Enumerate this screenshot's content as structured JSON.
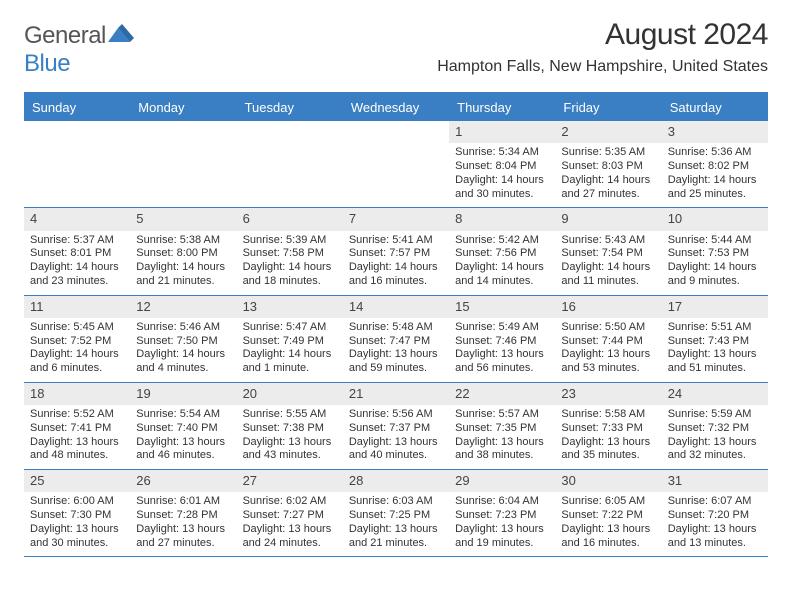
{
  "brand": {
    "word1": "General",
    "word2": "Blue"
  },
  "colors": {
    "brand_blue": "#3a7fc4",
    "header_bg": "#3a7fc4",
    "daynum_bg": "#ececec",
    "text": "#333333",
    "background": "#ffffff"
  },
  "typography": {
    "title_fontsize": 30,
    "location_fontsize": 16,
    "dow_fontsize": 13,
    "daynum_fontsize": 13,
    "body_fontsize": 11
  },
  "title": "August 2024",
  "location": "Hampton Falls, New Hampshire, United States",
  "dow": [
    "Sunday",
    "Monday",
    "Tuesday",
    "Wednesday",
    "Thursday",
    "Friday",
    "Saturday"
  ],
  "weeks": [
    [
      {
        "blank": true
      },
      {
        "blank": true
      },
      {
        "blank": true
      },
      {
        "blank": true
      },
      {
        "n": "1",
        "sr": "Sunrise: 5:34 AM",
        "ss": "Sunset: 8:04 PM",
        "d1": "Daylight: 14 hours",
        "d2": "and 30 minutes."
      },
      {
        "n": "2",
        "sr": "Sunrise: 5:35 AM",
        "ss": "Sunset: 8:03 PM",
        "d1": "Daylight: 14 hours",
        "d2": "and 27 minutes."
      },
      {
        "n": "3",
        "sr": "Sunrise: 5:36 AM",
        "ss": "Sunset: 8:02 PM",
        "d1": "Daylight: 14 hours",
        "d2": "and 25 minutes."
      }
    ],
    [
      {
        "n": "4",
        "sr": "Sunrise: 5:37 AM",
        "ss": "Sunset: 8:01 PM",
        "d1": "Daylight: 14 hours",
        "d2": "and 23 minutes."
      },
      {
        "n": "5",
        "sr": "Sunrise: 5:38 AM",
        "ss": "Sunset: 8:00 PM",
        "d1": "Daylight: 14 hours",
        "d2": "and 21 minutes."
      },
      {
        "n": "6",
        "sr": "Sunrise: 5:39 AM",
        "ss": "Sunset: 7:58 PM",
        "d1": "Daylight: 14 hours",
        "d2": "and 18 minutes."
      },
      {
        "n": "7",
        "sr": "Sunrise: 5:41 AM",
        "ss": "Sunset: 7:57 PM",
        "d1": "Daylight: 14 hours",
        "d2": "and 16 minutes."
      },
      {
        "n": "8",
        "sr": "Sunrise: 5:42 AM",
        "ss": "Sunset: 7:56 PM",
        "d1": "Daylight: 14 hours",
        "d2": "and 14 minutes."
      },
      {
        "n": "9",
        "sr": "Sunrise: 5:43 AM",
        "ss": "Sunset: 7:54 PM",
        "d1": "Daylight: 14 hours",
        "d2": "and 11 minutes."
      },
      {
        "n": "10",
        "sr": "Sunrise: 5:44 AM",
        "ss": "Sunset: 7:53 PM",
        "d1": "Daylight: 14 hours",
        "d2": "and 9 minutes."
      }
    ],
    [
      {
        "n": "11",
        "sr": "Sunrise: 5:45 AM",
        "ss": "Sunset: 7:52 PM",
        "d1": "Daylight: 14 hours",
        "d2": "and 6 minutes."
      },
      {
        "n": "12",
        "sr": "Sunrise: 5:46 AM",
        "ss": "Sunset: 7:50 PM",
        "d1": "Daylight: 14 hours",
        "d2": "and 4 minutes."
      },
      {
        "n": "13",
        "sr": "Sunrise: 5:47 AM",
        "ss": "Sunset: 7:49 PM",
        "d1": "Daylight: 14 hours",
        "d2": "and 1 minute."
      },
      {
        "n": "14",
        "sr": "Sunrise: 5:48 AM",
        "ss": "Sunset: 7:47 PM",
        "d1": "Daylight: 13 hours",
        "d2": "and 59 minutes."
      },
      {
        "n": "15",
        "sr": "Sunrise: 5:49 AM",
        "ss": "Sunset: 7:46 PM",
        "d1": "Daylight: 13 hours",
        "d2": "and 56 minutes."
      },
      {
        "n": "16",
        "sr": "Sunrise: 5:50 AM",
        "ss": "Sunset: 7:44 PM",
        "d1": "Daylight: 13 hours",
        "d2": "and 53 minutes."
      },
      {
        "n": "17",
        "sr": "Sunrise: 5:51 AM",
        "ss": "Sunset: 7:43 PM",
        "d1": "Daylight: 13 hours",
        "d2": "and 51 minutes."
      }
    ],
    [
      {
        "n": "18",
        "sr": "Sunrise: 5:52 AM",
        "ss": "Sunset: 7:41 PM",
        "d1": "Daylight: 13 hours",
        "d2": "and 48 minutes."
      },
      {
        "n": "19",
        "sr": "Sunrise: 5:54 AM",
        "ss": "Sunset: 7:40 PM",
        "d1": "Daylight: 13 hours",
        "d2": "and 46 minutes."
      },
      {
        "n": "20",
        "sr": "Sunrise: 5:55 AM",
        "ss": "Sunset: 7:38 PM",
        "d1": "Daylight: 13 hours",
        "d2": "and 43 minutes."
      },
      {
        "n": "21",
        "sr": "Sunrise: 5:56 AM",
        "ss": "Sunset: 7:37 PM",
        "d1": "Daylight: 13 hours",
        "d2": "and 40 minutes."
      },
      {
        "n": "22",
        "sr": "Sunrise: 5:57 AM",
        "ss": "Sunset: 7:35 PM",
        "d1": "Daylight: 13 hours",
        "d2": "and 38 minutes."
      },
      {
        "n": "23",
        "sr": "Sunrise: 5:58 AM",
        "ss": "Sunset: 7:33 PM",
        "d1": "Daylight: 13 hours",
        "d2": "and 35 minutes."
      },
      {
        "n": "24",
        "sr": "Sunrise: 5:59 AM",
        "ss": "Sunset: 7:32 PM",
        "d1": "Daylight: 13 hours",
        "d2": "and 32 minutes."
      }
    ],
    [
      {
        "n": "25",
        "sr": "Sunrise: 6:00 AM",
        "ss": "Sunset: 7:30 PM",
        "d1": "Daylight: 13 hours",
        "d2": "and 30 minutes."
      },
      {
        "n": "26",
        "sr": "Sunrise: 6:01 AM",
        "ss": "Sunset: 7:28 PM",
        "d1": "Daylight: 13 hours",
        "d2": "and 27 minutes."
      },
      {
        "n": "27",
        "sr": "Sunrise: 6:02 AM",
        "ss": "Sunset: 7:27 PM",
        "d1": "Daylight: 13 hours",
        "d2": "and 24 minutes."
      },
      {
        "n": "28",
        "sr": "Sunrise: 6:03 AM",
        "ss": "Sunset: 7:25 PM",
        "d1": "Daylight: 13 hours",
        "d2": "and 21 minutes."
      },
      {
        "n": "29",
        "sr": "Sunrise: 6:04 AM",
        "ss": "Sunset: 7:23 PM",
        "d1": "Daylight: 13 hours",
        "d2": "and 19 minutes."
      },
      {
        "n": "30",
        "sr": "Sunrise: 6:05 AM",
        "ss": "Sunset: 7:22 PM",
        "d1": "Daylight: 13 hours",
        "d2": "and 16 minutes."
      },
      {
        "n": "31",
        "sr": "Sunrise: 6:07 AM",
        "ss": "Sunset: 7:20 PM",
        "d1": "Daylight: 13 hours",
        "d2": "and 13 minutes."
      }
    ]
  ]
}
